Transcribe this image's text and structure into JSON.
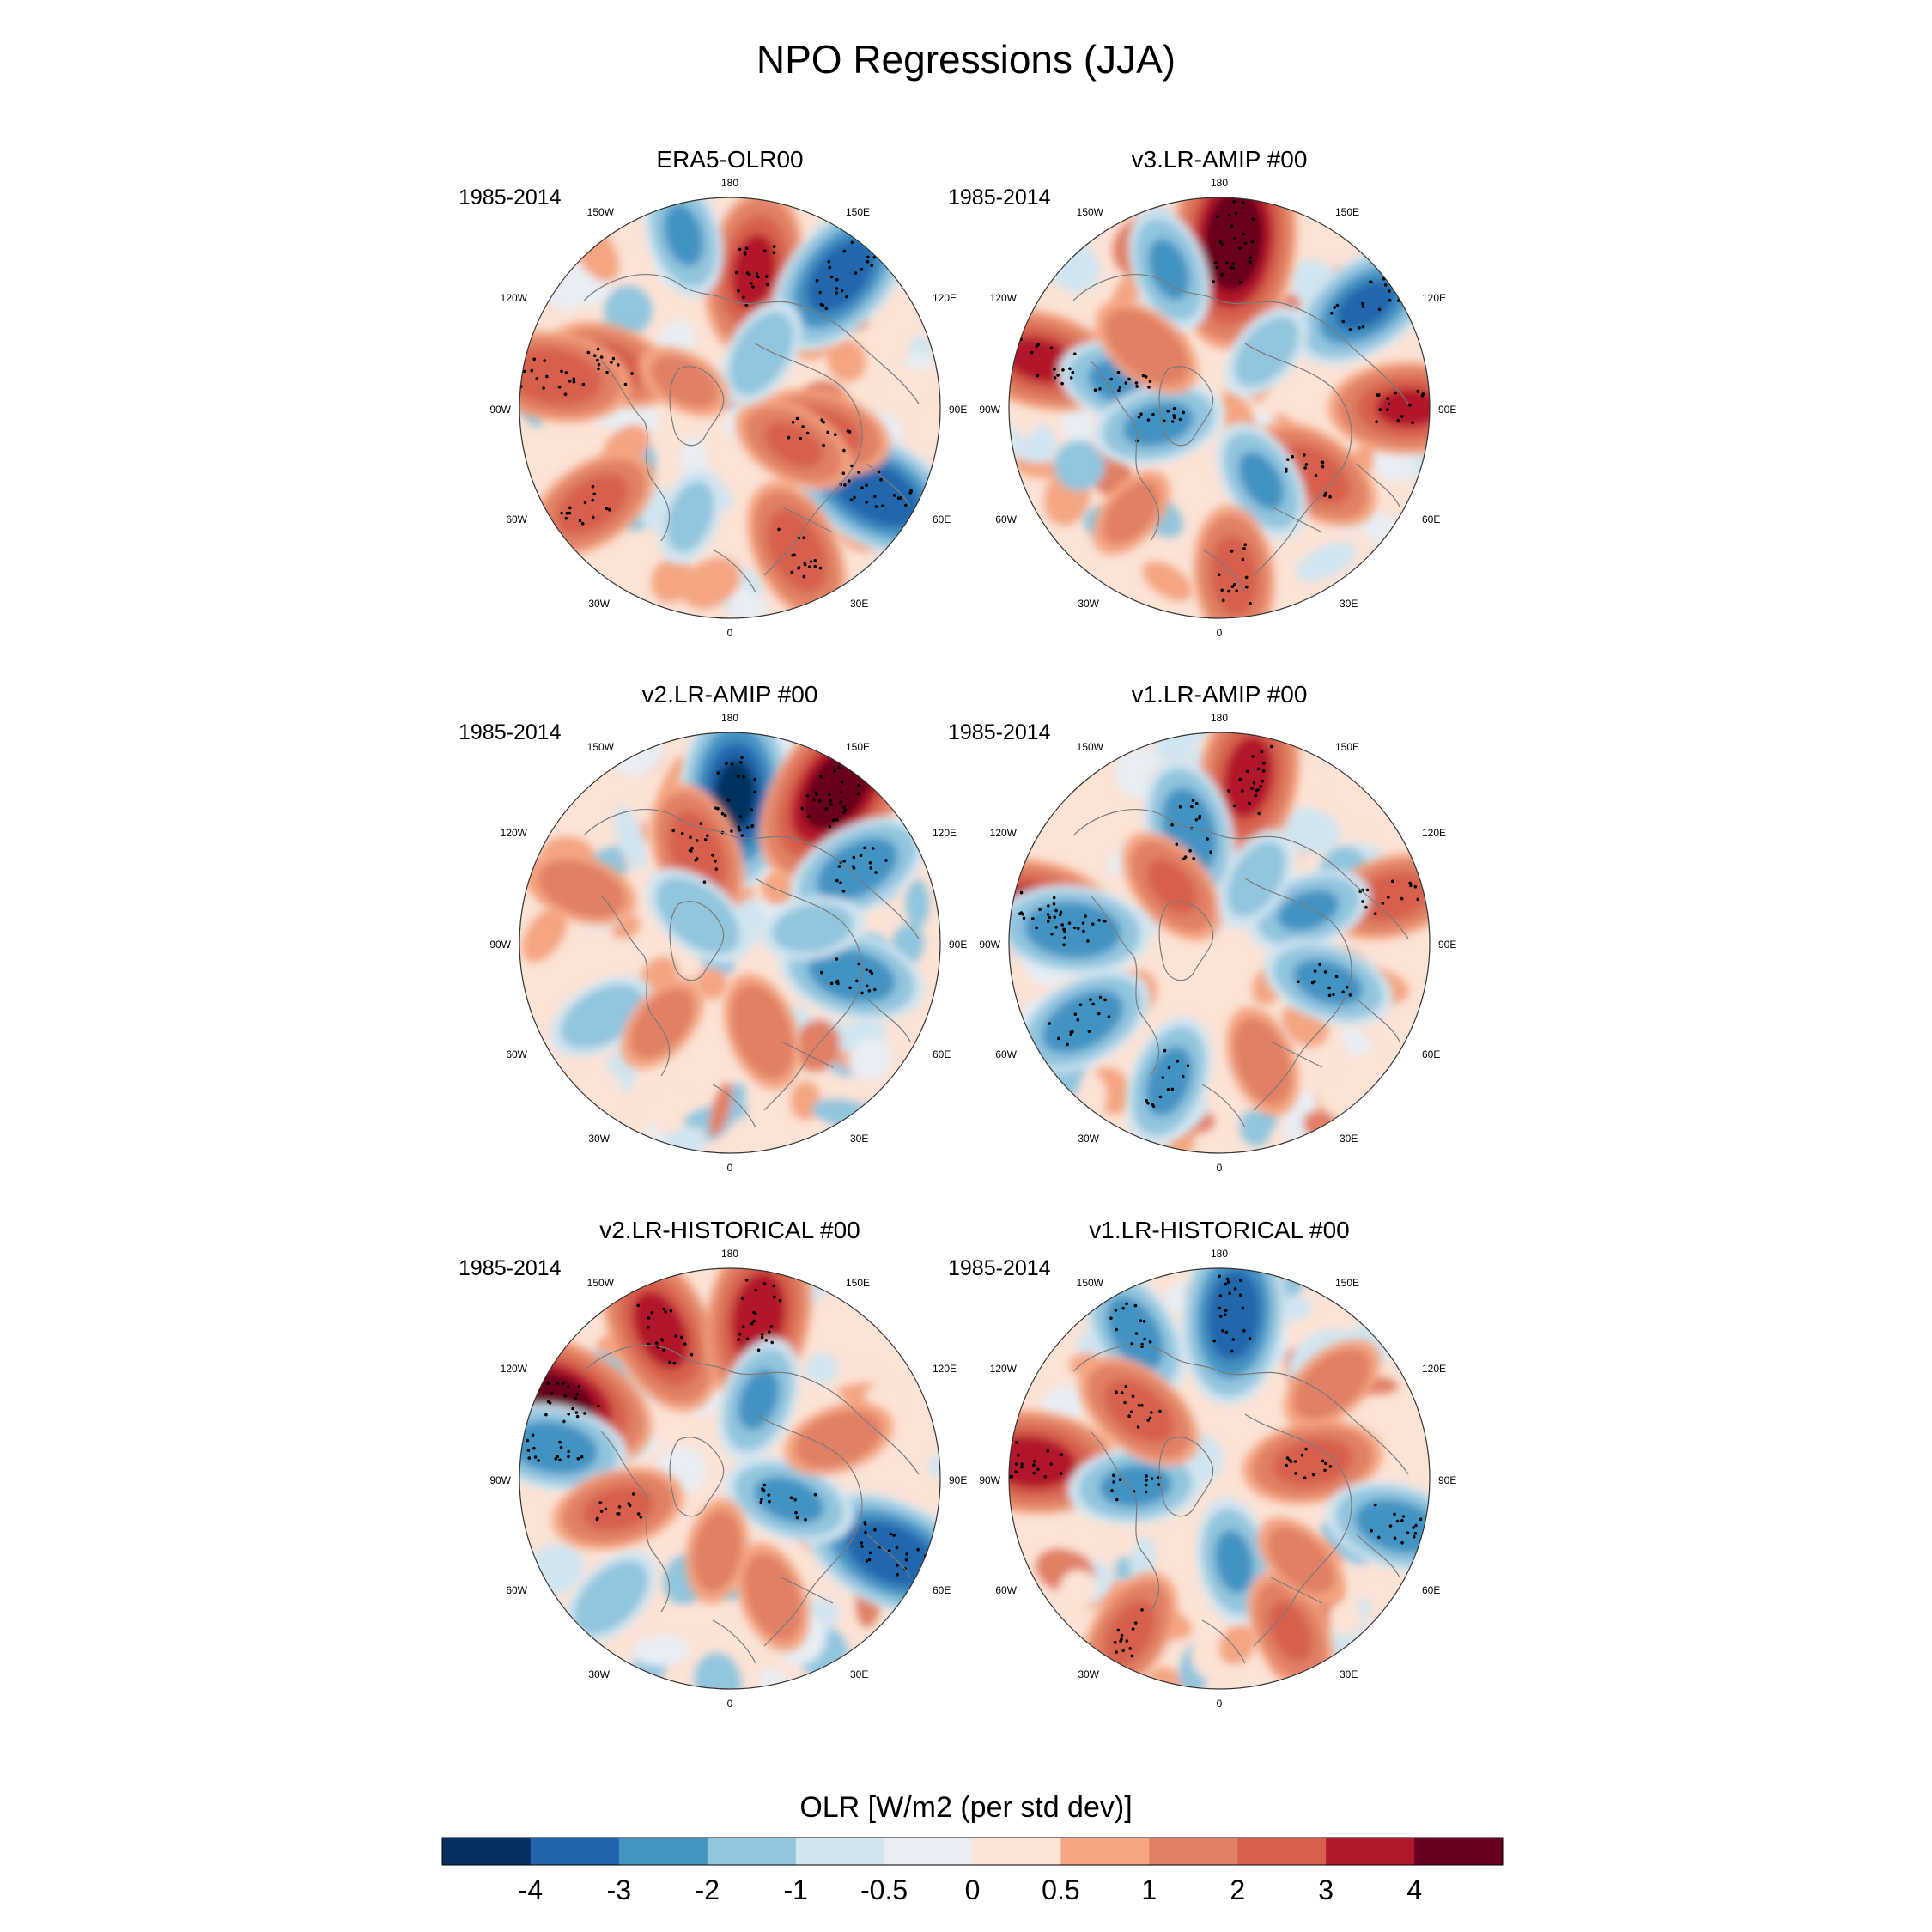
{
  "title": "NPO Regressions (JJA)",
  "chart_data": {
    "type": "heatmap",
    "projection": "north polar stereographic",
    "title": "NPO Regressions (JJA)",
    "period": "1985-2014",
    "lon_labels": [
      "180",
      "150E",
      "120E",
      "90E",
      "60E",
      "30E",
      "0",
      "30W",
      "60W",
      "90W",
      "120W",
      "150W"
    ],
    "colorbar": {
      "title": "OLR [W/m2 (per std dev)]",
      "ticks": [
        "-4",
        "-3",
        "-2",
        "-1",
        "-0.5",
        "0",
        "0.5",
        "1",
        "2",
        "3",
        "4"
      ],
      "colors": [
        "#053061",
        "#2166ac",
        "#4393c3",
        "#92c5de",
        "#d1e5f0",
        "#e8eef4",
        "#fbe3d6",
        "#f4a582",
        "#e08066",
        "#d6604d",
        "#b2182b",
        "#67001f"
      ]
    },
    "panels": [
      {
        "name": "ERA5-OLR00",
        "period": "1985-2014",
        "anomalies": [
          {
            "lon": 170,
            "r": 0.66,
            "v": 3.2
          },
          {
            "lon": 140,
            "r": 0.82,
            "v": -3.5
          },
          {
            "lon": -165,
            "r": 0.85,
            "v": -2.0
          },
          {
            "lon": -110,
            "r": 0.6,
            "v": 2.2
          },
          {
            "lon": -100,
            "r": 0.85,
            "v": 2.8
          },
          {
            "lon": 60,
            "r": 0.8,
            "v": -3.8
          },
          {
            "lon": 75,
            "r": 0.45,
            "v": 2.4
          },
          {
            "lon": 25,
            "r": 0.75,
            "v": 2.6
          },
          {
            "lon": 60,
            "r": 0.35,
            "v": 2.0
          },
          {
            "lon": -55,
            "r": 0.8,
            "v": 2.4
          },
          {
            "lon": -20,
            "r": 0.55,
            "v": -1.2
          },
          {
            "lon": 150,
            "r": 0.3,
            "v": -1.6
          },
          {
            "lon": -120,
            "r": 0.25,
            "v": 1.2
          }
        ]
      },
      {
        "name": "v3.LR-AMIP  #00",
        "period": "1985-2014",
        "anomalies": [
          {
            "lon": 175,
            "r": 0.8,
            "v": 4.8
          },
          {
            "lon": 125,
            "r": 0.85,
            "v": -3.0
          },
          {
            "lon": -160,
            "r": 0.7,
            "v": -2.0
          },
          {
            "lon": -105,
            "r": 0.88,
            "v": 3.2
          },
          {
            "lon": -105,
            "r": 0.45,
            "v": -2.4
          },
          {
            "lon": -75,
            "r": 0.3,
            "v": -2.2
          },
          {
            "lon": -130,
            "r": 0.45,
            "v": 1.8
          },
          {
            "lon": 90,
            "r": 0.9,
            "v": 3.0
          },
          {
            "lon": 55,
            "r": 0.55,
            "v": 2.4
          },
          {
            "lon": 30,
            "r": 0.4,
            "v": -2.0
          },
          {
            "lon": 5,
            "r": 0.8,
            "v": 2.4
          },
          {
            "lon": 140,
            "r": 0.35,
            "v": -1.4
          },
          {
            "lon": -40,
            "r": 0.65,
            "v": 1.2
          }
        ]
      },
      {
        "name": "v2.LR-AMIP  #00",
        "period": "1985-2014",
        "anomalies": [
          {
            "lon": 178,
            "r": 0.7,
            "v": -4.0
          },
          {
            "lon": 145,
            "r": 0.9,
            "v": 4.6
          },
          {
            "lon": 120,
            "r": 0.7,
            "v": -2.6
          },
          {
            "lon": -160,
            "r": 0.45,
            "v": 2.6
          },
          {
            "lon": 75,
            "r": 0.6,
            "v": -2.6
          },
          {
            "lon": -110,
            "r": 0.75,
            "v": 1.6
          },
          {
            "lon": 20,
            "r": 0.45,
            "v": 1.8
          },
          {
            "lon": -60,
            "r": 0.7,
            "v": -1.6
          },
          {
            "lon": -130,
            "r": 0.2,
            "v": -1.8
          },
          {
            "lon": -40,
            "r": 0.5,
            "v": 1.4
          },
          {
            "lon": 100,
            "r": 0.4,
            "v": -1.4
          }
        ]
      },
      {
        "name": "v1.LR-AMIP  #00",
        "period": "1985-2014",
        "anomalies": [
          {
            "lon": 170,
            "r": 0.8,
            "v": 3.4
          },
          {
            "lon": -165,
            "r": 0.55,
            "v": -2.6
          },
          {
            "lon": -100,
            "r": 0.9,
            "v": 3.4
          },
          {
            "lon": -95,
            "r": 0.7,
            "v": -2.8
          },
          {
            "lon": -60,
            "r": 0.75,
            "v": -2.6
          },
          {
            "lon": 105,
            "r": 0.85,
            "v": 2.4
          },
          {
            "lon": 110,
            "r": 0.45,
            "v": -2.0
          },
          {
            "lon": 70,
            "r": 0.55,
            "v": -2.2
          },
          {
            "lon": -140,
            "r": 0.35,
            "v": 2.0
          },
          {
            "lon": 20,
            "r": 0.6,
            "v": 1.6
          },
          {
            "lon": -20,
            "r": 0.7,
            "v": -2.2
          },
          {
            "lon": 150,
            "r": 0.35,
            "v": -1.4
          }
        ]
      },
      {
        "name": "v2.LR-HISTORICAL  #00",
        "period": "1985-2014",
        "anomalies": [
          {
            "lon": -155,
            "r": 0.78,
            "v": 3.4
          },
          {
            "lon": 170,
            "r": 0.78,
            "v": 3.6
          },
          {
            "lon": -115,
            "r": 0.9,
            "v": 4.2
          },
          {
            "lon": -100,
            "r": 0.85,
            "v": -2.6
          },
          {
            "lon": 65,
            "r": 0.85,
            "v": -3.8
          },
          {
            "lon": -75,
            "r": 0.55,
            "v": 2.2
          },
          {
            "lon": 160,
            "r": 0.4,
            "v": -2.0
          },
          {
            "lon": 70,
            "r": 0.3,
            "v": -2.2
          },
          {
            "lon": -45,
            "r": 0.8,
            "v": -1.6
          },
          {
            "lon": 20,
            "r": 0.6,
            "v": 1.6
          },
          {
            "lon": 110,
            "r": 0.55,
            "v": 1.6
          },
          {
            "lon": -10,
            "r": 0.35,
            "v": 1.4
          }
        ]
      },
      {
        "name": "v1.LR-HISTORICAL  #00",
        "period": "1985-2014",
        "anomalies": [
          {
            "lon": 175,
            "r": 0.78,
            "v": -3.6
          },
          {
            "lon": -150,
            "r": 0.8,
            "v": -2.4
          },
          {
            "lon": -95,
            "r": 0.9,
            "v": 3.6
          },
          {
            "lon": -85,
            "r": 0.4,
            "v": -2.2
          },
          {
            "lon": -130,
            "r": 0.5,
            "v": 2.4
          },
          {
            "lon": 100,
            "r": 0.45,
            "v": 2.4
          },
          {
            "lon": 75,
            "r": 0.88,
            "v": -2.6
          },
          {
            "lon": 10,
            "r": 0.4,
            "v": -2.0
          },
          {
            "lon": -30,
            "r": 0.85,
            "v": 2.2
          },
          {
            "lon": 25,
            "r": 0.8,
            "v": 2.0
          },
          {
            "lon": 130,
            "r": 0.7,
            "v": 1.6
          },
          {
            "lon": 45,
            "r": 0.55,
            "v": 1.4
          }
        ]
      }
    ]
  }
}
